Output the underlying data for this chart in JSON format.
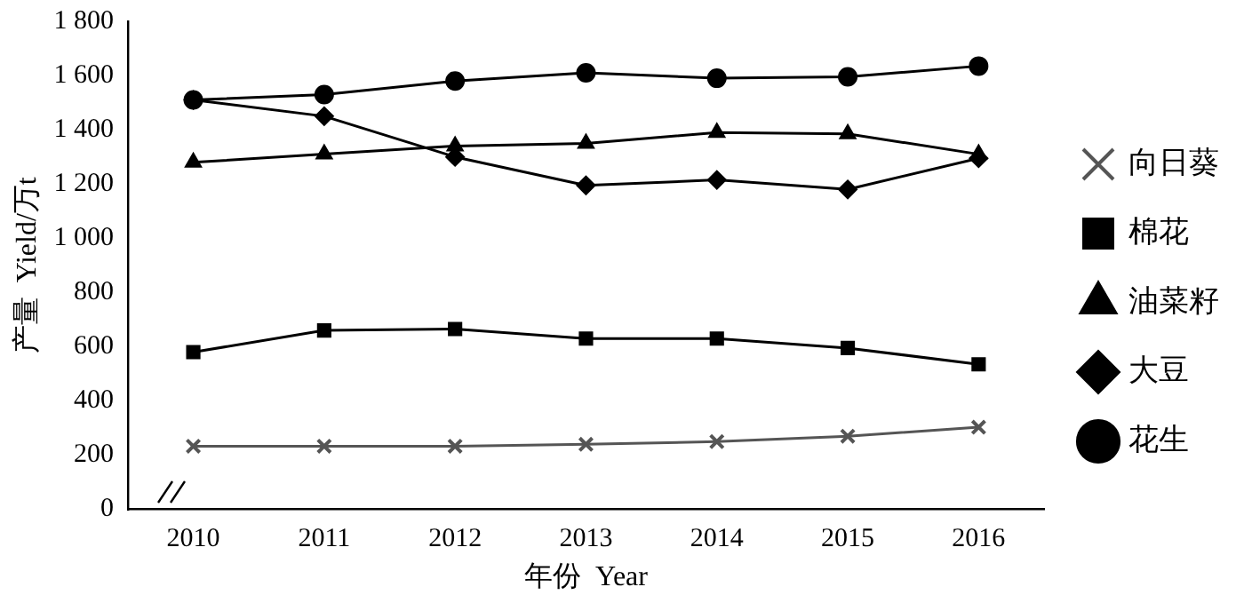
{
  "chart_data": {
    "type": "line",
    "xlabel": "年份  Year",
    "ylabel": "产量  Yield/万t",
    "categories": [
      "2010",
      "2011",
      "2012",
      "2013",
      "2014",
      "2015",
      "2016"
    ],
    "ylim": [
      0,
      1800
    ],
    "yticks": [
      0,
      200,
      400,
      600,
      800,
      {
        "value": 1000,
        "label": "1 000"
      },
      {
        "value": 1200,
        "label": "1 200"
      },
      {
        "value": 1400,
        "label": "1 400"
      },
      {
        "value": 1600,
        "label": "1 600"
      },
      {
        "value": 1800,
        "label": "1 800"
      }
    ],
    "grid": false,
    "legend": "right",
    "line_style": "solid",
    "series": [
      {
        "name": "向日葵",
        "color": "#555555",
        "marker": "cross",
        "values": [
          233,
          233,
          233,
          240,
          250,
          270,
          303
        ]
      },
      {
        "name": "棉花",
        "color": "#000000",
        "marker": "square",
        "values": [
          580,
          660,
          665,
          630,
          630,
          595,
          535
        ]
      },
      {
        "name": "油菜籽",
        "color": "#000000",
        "marker": "triangle",
        "values": [
          1280,
          1310,
          1340,
          1350,
          1390,
          1385,
          1310
        ]
      },
      {
        "name": "大豆",
        "color": "#000000",
        "marker": "diamond",
        "values": [
          1510,
          1450,
          1300,
          1195,
          1215,
          1180,
          1295
        ]
      },
      {
        "name": "花生",
        "color": "#000000",
        "marker": "circle",
        "values": [
          1510,
          1530,
          1580,
          1610,
          1590,
          1595,
          1635
        ]
      }
    ]
  }
}
